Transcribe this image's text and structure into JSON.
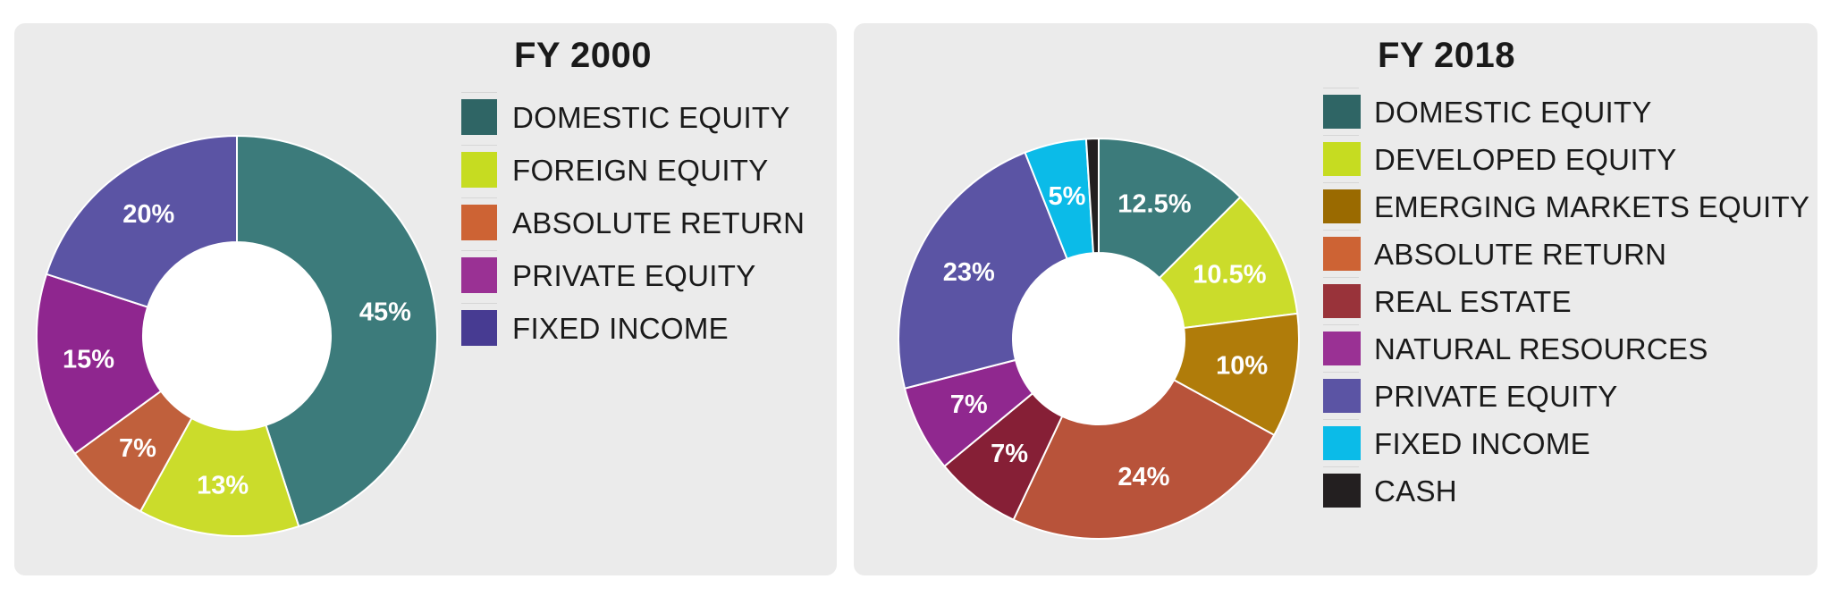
{
  "chart_data": [
    {
      "type": "pie",
      "title": "FY 2000",
      "categories": [
        "DOMESTIC EQUITY",
        "FOREIGN EQUITY",
        "ABSOLUTE RETURN",
        "PRIVATE EQUITY",
        "FIXED INCOME"
      ],
      "values": [
        45,
        13,
        7,
        15,
        20
      ],
      "data_labels": [
        "45%",
        "13%",
        "7%",
        "15%",
        "20%"
      ],
      "legend_colors": [
        "#2f6565",
        "#c6dc21",
        "#cd6334",
        "#9a3194",
        "#473b92"
      ],
      "slice_colors": [
        "#3c7b7b",
        "#cbdc2b",
        "#c0603c",
        "#8f268f",
        "#5b54a4"
      ],
      "legend_position": "right",
      "donut": true
    },
    {
      "type": "pie",
      "title": "FY 2018",
      "categories": [
        "DOMESTIC EQUITY",
        "DEVELOPED EQUITY",
        "EMERGING MARKETS EQUITY",
        "ABSOLUTE RETURN",
        "REAL ESTATE",
        "NATURAL RESOURCES",
        "PRIVATE EQUITY",
        "FIXED INCOME",
        "CASH"
      ],
      "values": [
        12.5,
        10.5,
        10,
        24,
        7,
        7,
        23,
        5,
        1
      ],
      "data_labels": [
        "12.5%",
        "10.5%",
        "10%",
        "24%",
        "7%",
        "7%",
        "23%",
        "5%",
        ""
      ],
      "legend_colors": [
        "#2f6565",
        "#c6dc21",
        "#9a6a00",
        "#cd6334",
        "#99333a",
        "#9a3194",
        "#5b54a4",
        "#0bbbe8",
        "#231f20"
      ],
      "slice_colors": [
        "#3c7b7b",
        "#cbdc2b",
        "#b07c0a",
        "#b8533a",
        "#861f36",
        "#90288f",
        "#5b54a4",
        "#0bbbe8",
        "#231f20"
      ],
      "legend_position": "right",
      "donut": true
    }
  ]
}
